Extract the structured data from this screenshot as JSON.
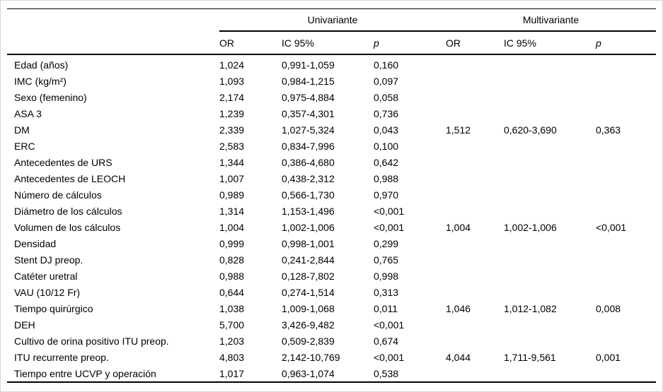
{
  "table": {
    "groups": [
      {
        "label": "Univariante",
        "columns": [
          "OR",
          "IC 95%",
          "p"
        ]
      },
      {
        "label": "Multivariante",
        "columns": [
          "OR",
          "IC 95%",
          "p"
        ]
      }
    ],
    "rows": [
      {
        "variable": "Edad (años)",
        "u_or": "1,024",
        "u_ic": "0,991-1,059",
        "u_p": "0,160",
        "m_or": "",
        "m_ic": "",
        "m_p": ""
      },
      {
        "variable": "IMC (kg/m²)",
        "u_or": "1,093",
        "u_ic": "0,984-1,215",
        "u_p": "0,097",
        "m_or": "",
        "m_ic": "",
        "m_p": ""
      },
      {
        "variable": "Sexo (femenino)",
        "u_or": "2,174",
        "u_ic": "0,975-4,884",
        "u_p": "0,058",
        "m_or": "",
        "m_ic": "",
        "m_p": ""
      },
      {
        "variable": "ASA 3",
        "u_or": "1,239",
        "u_ic": "0,357-4,301",
        "u_p": "0,736",
        "m_or": "",
        "m_ic": "",
        "m_p": ""
      },
      {
        "variable": "DM",
        "u_or": "2,339",
        "u_ic": "1,027-5,324",
        "u_p": "0,043",
        "m_or": "1,512",
        "m_ic": "0,620-3,690",
        "m_p": "0,363"
      },
      {
        "variable": "ERC",
        "u_or": "2,583",
        "u_ic": "0,834-7,996",
        "u_p": "0,100",
        "m_or": "",
        "m_ic": "",
        "m_p": ""
      },
      {
        "variable": "Antecedentes de URS",
        "u_or": "1,344",
        "u_ic": "0,386-4,680",
        "u_p": "0,642",
        "m_or": "",
        "m_ic": "",
        "m_p": ""
      },
      {
        "variable": "Antecedentes de LEOCH",
        "u_or": "1,007",
        "u_ic": "0,438-2,312",
        "u_p": "0,988",
        "m_or": "",
        "m_ic": "",
        "m_p": ""
      },
      {
        "variable": "Número de cálculos",
        "u_or": "0,989",
        "u_ic": "0,566-1,730",
        "u_p": "0,970",
        "m_or": "",
        "m_ic": "",
        "m_p": ""
      },
      {
        "variable": "Diámetro de los cálculos",
        "u_or": "1,314",
        "u_ic": "1,153-1,496",
        "u_p": "<0,001",
        "m_or": "",
        "m_ic": "",
        "m_p": ""
      },
      {
        "variable": "Volumen de los cálculos",
        "u_or": "1,004",
        "u_ic": "1,002-1,006",
        "u_p": "<0,001",
        "m_or": "1,004",
        "m_ic": "1,002-1,006",
        "m_p": "<0,001"
      },
      {
        "variable": "Densidad",
        "u_or": "0,999",
        "u_ic": "0,998-1,001",
        "u_p": "0,299",
        "m_or": "",
        "m_ic": "",
        "m_p": ""
      },
      {
        "variable": "Stent DJ preop.",
        "u_or": "0,828",
        "u_ic": "0,241-2,844",
        "u_p": "0,765",
        "m_or": "",
        "m_ic": "",
        "m_p": ""
      },
      {
        "variable": "Catéter uretral",
        "u_or": "0,988",
        "u_ic": "0,128-7,802",
        "u_p": "0,998",
        "m_or": "",
        "m_ic": "",
        "m_p": ""
      },
      {
        "variable": "VAU (10/12 Fr)",
        "u_or": "0,644",
        "u_ic": "0,274-1,514",
        "u_p": "0,313",
        "m_or": "",
        "m_ic": "",
        "m_p": ""
      },
      {
        "variable": "Tiempo quirúrgico",
        "u_or": "1,038",
        "u_ic": "1,009-1,068",
        "u_p": "0,011",
        "m_or": "1,046",
        "m_ic": "1,012-1,082",
        "m_p": "0,008"
      },
      {
        "variable": "DEH",
        "u_or": "5,700",
        "u_ic": "3,426-9,482",
        "u_p": "<0,001",
        "m_or": "",
        "m_ic": "",
        "m_p": ""
      },
      {
        "variable": "Cultivo de orina positivo ITU preop.",
        "u_or": "1,203",
        "u_ic": "0,509-2,839",
        "u_p": "0,674",
        "m_or": "",
        "m_ic": "",
        "m_p": ""
      },
      {
        "variable": "ITU recurrente preop.",
        "u_or": "4,803",
        "u_ic": "2,142-10,769",
        "u_p": "<0,001",
        "m_or": "4,044",
        "m_ic": "1,711-9,561",
        "m_p": "0,001"
      },
      {
        "variable": "Tiempo entre UCVP y operación",
        "u_or": "1,017",
        "u_ic": "0,963-1,074",
        "u_p": "0,538",
        "m_or": "",
        "m_ic": "",
        "m_p": ""
      }
    ]
  }
}
